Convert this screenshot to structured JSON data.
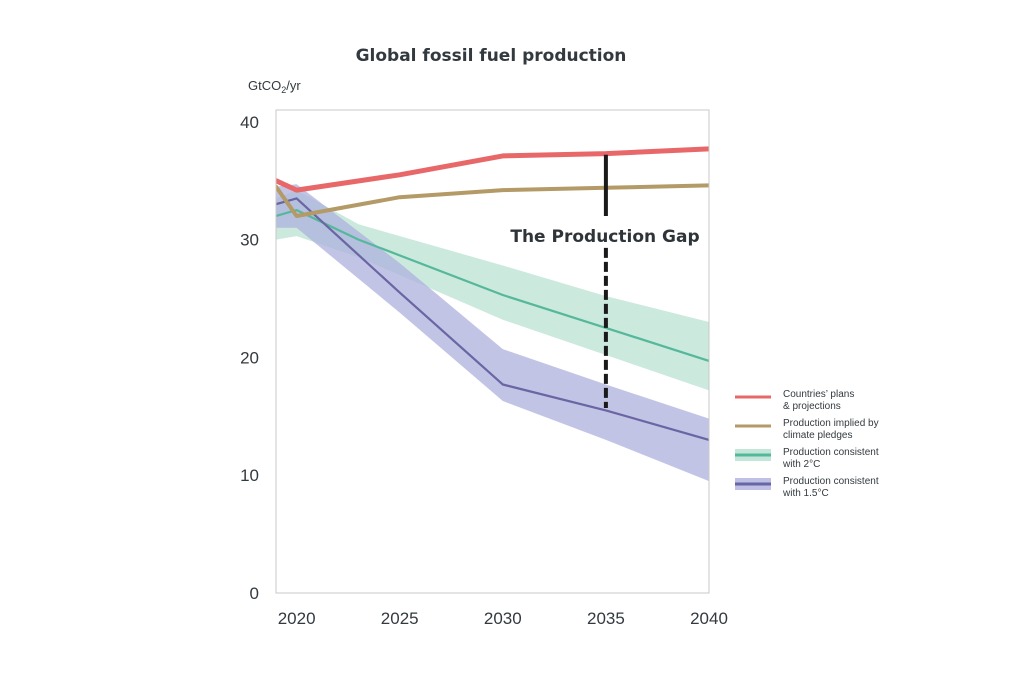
{
  "chart_data": {
    "type": "line",
    "title": "Global fossil fuel production",
    "ylabel_prefix": "GtCO",
    "ylabel_sub": "2",
    "ylabel_suffix": "/yr",
    "xlim": [
      2019,
      2040
    ],
    "ylim": [
      0,
      41
    ],
    "x_ticks": [
      2020,
      2025,
      2030,
      2035,
      2040
    ],
    "y_ticks": [
      0,
      10,
      20,
      30,
      40
    ],
    "grid": false,
    "legend_position": "right",
    "series": [
      {
        "key": "plans",
        "legend_lines": [
          "Countries’ plans",
          "& projections"
        ],
        "color": "#e8686a",
        "points": [
          [
            2019,
            35
          ],
          [
            2020,
            34.2
          ],
          [
            2025,
            35.5
          ],
          [
            2030,
            37.1
          ],
          [
            2035,
            37.3
          ],
          [
            2040,
            37.7
          ]
        ]
      },
      {
        "key": "pledges",
        "legend_lines": [
          "Production implied by",
          " climate pledges"
        ],
        "color": "#b39a67",
        "points": [
          [
            2019,
            34.5
          ],
          [
            2020,
            32
          ],
          [
            2025,
            33.6
          ],
          [
            2030,
            34.2
          ],
          [
            2035,
            34.4
          ],
          [
            2040,
            34.6
          ]
        ]
      },
      {
        "key": "c2",
        "legend_lines": [
          "Production consistent",
          "with 2°C"
        ],
        "color": "#55b89a",
        "band_color": "#b5e0cf",
        "points": [
          [
            2019,
            32
          ],
          [
            2020,
            32.5
          ],
          [
            2023,
            30
          ],
          [
            2030,
            25.3
          ],
          [
            2035,
            22.5
          ],
          [
            2040,
            19.7
          ]
        ],
        "band_upper": [
          [
            2019,
            33.5
          ],
          [
            2020,
            34.2
          ],
          [
            2023,
            31.3
          ],
          [
            2030,
            27.8
          ],
          [
            2035,
            25.2
          ],
          [
            2040,
            23
          ]
        ],
        "band_lower": [
          [
            2040,
            17.2
          ],
          [
            2035,
            20.2
          ],
          [
            2030,
            23.2
          ],
          [
            2023,
            28.5
          ],
          [
            2020,
            30.3
          ],
          [
            2019,
            30
          ]
        ]
      },
      {
        "key": "c15",
        "legend_lines": [
          "Production consistent",
          "with 1.5°C"
        ],
        "color": "#6a65a3",
        "band_color": "#aeb0de",
        "points": [
          [
            2019,
            33
          ],
          [
            2020,
            33.5
          ],
          [
            2025,
            25.5
          ],
          [
            2030,
            17.7
          ],
          [
            2035,
            15.5
          ],
          [
            2040,
            13
          ]
        ],
        "band_upper": [
          [
            2019,
            34.5
          ],
          [
            2020,
            34.7
          ],
          [
            2025,
            28
          ],
          [
            2030,
            20.7
          ],
          [
            2035,
            17.7
          ],
          [
            2040,
            14.8
          ]
        ],
        "band_lower": [
          [
            2040,
            9.5
          ],
          [
            2035,
            13
          ],
          [
            2030,
            16.3
          ],
          [
            2025,
            23.8
          ],
          [
            2020,
            31
          ],
          [
            2019,
            31
          ]
        ]
      }
    ],
    "annotation": {
      "text": "The Production Gap",
      "x": 2035,
      "solid_top": 37.2,
      "solid_bottom": 32,
      "dashed_top": 29.3,
      "dashed_bottom": 15.7,
      "color": "#1a1a1a"
    }
  }
}
